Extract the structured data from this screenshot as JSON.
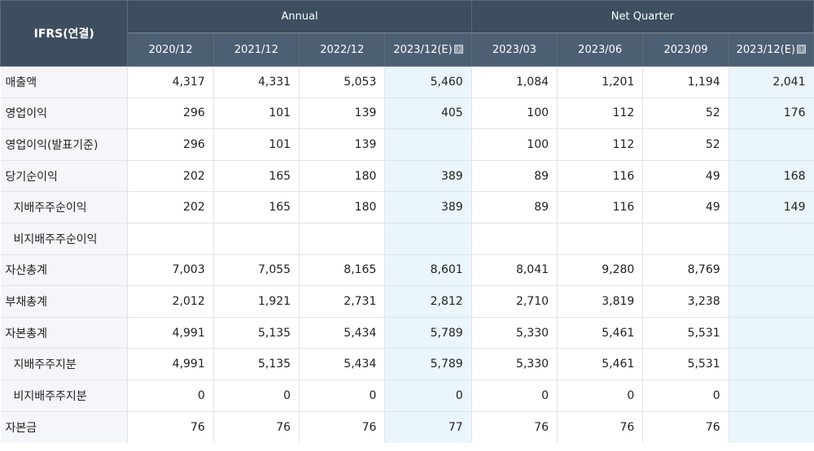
{
  "header": {
    "corner_label": "IFRS(연결)",
    "group_annual": "Annual",
    "group_quarter": "Net Quarter",
    "periods": [
      "2020/12",
      "2021/12",
      "2022/12",
      "2023/12(E)",
      "2023/03",
      "2023/06",
      "2023/09",
      "2023/12(E)"
    ],
    "estimate_icon": "?"
  },
  "rows": [
    {
      "label": "매출액",
      "values": [
        "4,317",
        "4,331",
        "5,053",
        "5,460",
        "1,084",
        "1,201",
        "1,194",
        "2,041"
      ]
    },
    {
      "label": "영업이익",
      "values": [
        "296",
        "101",
        "139",
        "405",
        "100",
        "112",
        "52",
        "176"
      ]
    },
    {
      "label": "영업이익(발표기준)",
      "values": [
        "296",
        "101",
        "139",
        "",
        "100",
        "112",
        "52",
        ""
      ]
    },
    {
      "label": "당기순이익",
      "values": [
        "202",
        "165",
        "180",
        "389",
        "89",
        "116",
        "49",
        "168"
      ]
    },
    {
      "label": "지배주주순이익",
      "values": [
        "202",
        "165",
        "180",
        "389",
        "89",
        "116",
        "49",
        "149"
      ]
    },
    {
      "label": "비지배주주순이익",
      "values": [
        "",
        "",
        "",
        "",
        "",
        "",
        "",
        ""
      ]
    },
    {
      "label": "자산총계",
      "values": [
        "7,003",
        "7,055",
        "8,165",
        "8,601",
        "8,041",
        "9,280",
        "8,769",
        ""
      ]
    },
    {
      "label": "부채총계",
      "values": [
        "2,012",
        "1,921",
        "2,731",
        "2,812",
        "2,710",
        "3,819",
        "3,238",
        ""
      ]
    },
    {
      "label": "자본총계",
      "values": [
        "4,991",
        "5,135",
        "5,434",
        "5,789",
        "5,330",
        "5,461",
        "5,531",
        ""
      ]
    },
    {
      "label": "지배주주지분",
      "values": [
        "4,991",
        "5,135",
        "5,434",
        "5,789",
        "5,330",
        "5,461",
        "5,531",
        ""
      ]
    },
    {
      "label": "비지배주주지분",
      "values": [
        "0",
        "0",
        "0",
        "0",
        "0",
        "0",
        "0",
        ""
      ]
    },
    {
      "label": "자본금",
      "values": [
        "76",
        "76",
        "76",
        "77",
        "76",
        "76",
        "76",
        ""
      ]
    }
  ]
}
